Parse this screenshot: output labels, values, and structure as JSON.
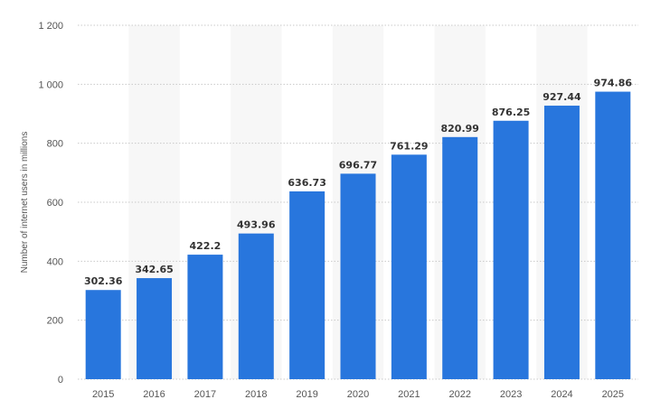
{
  "chart_data": {
    "type": "bar",
    "title": "",
    "xlabel": "",
    "ylabel": "Number of internet users in millions",
    "categories": [
      "2015",
      "2016",
      "2017",
      "2018",
      "2019",
      "2020",
      "2021",
      "2022",
      "2023",
      "2024",
      "2025"
    ],
    "values": [
      302.36,
      342.65,
      422.2,
      493.96,
      636.73,
      696.77,
      761.29,
      820.99,
      876.25,
      927.44,
      974.86
    ],
    "value_labels": [
      "302.36",
      "342.65",
      "422.2",
      "493.96",
      "636.73",
      "696.77",
      "761.29",
      "820.99",
      "876.25",
      "927.44",
      "974.86"
    ],
    "ylim": [
      0,
      1200
    ],
    "yticks": [
      0,
      200,
      400,
      600,
      800,
      1000,
      1200
    ],
    "ytick_labels": [
      "0",
      "200",
      "400",
      "600",
      "800",
      "1 000",
      "1 200"
    ],
    "grid": true,
    "legend": "none",
    "colors": {
      "bar": "#2876dd",
      "band": "#f7f7f7"
    }
  }
}
